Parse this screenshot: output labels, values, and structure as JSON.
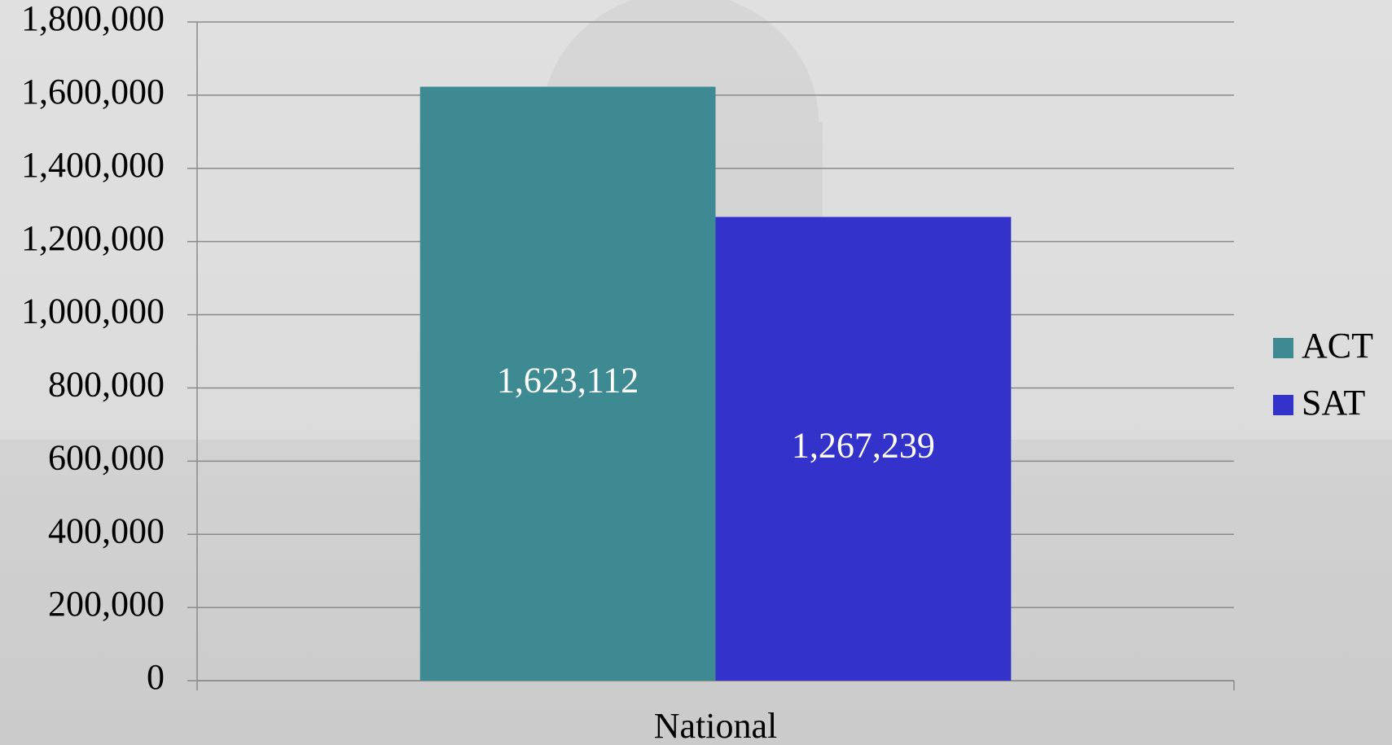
{
  "chart_data": {
    "type": "bar",
    "categories": [
      "National"
    ],
    "series": [
      {
        "name": "ACT",
        "color": "#3d8a92",
        "values": [
          1623112
        ],
        "value_labels": [
          "1,623,112"
        ]
      },
      {
        "name": "SAT",
        "color": "#3333cc",
        "values": [
          1267239
        ],
        "value_labels": [
          "1,267,239"
        ]
      }
    ],
    "ylim": [
      0,
      1800000
    ],
    "yticks": [
      0,
      {
        "value": 200000,
        "label": "200,000"
      },
      {
        "value": 400000,
        "label": "400,000"
      },
      {
        "value": 600000,
        "label": "600,000"
      },
      {
        "value": 800000,
        "label": "800,000"
      },
      {
        "value": 1000000,
        "label": "1,000,000"
      },
      {
        "value": 1200000,
        "label": "1,200,000"
      },
      {
        "value": 1400000,
        "label": "1,400,000"
      },
      {
        "value": 1600000,
        "label": "1,600,000"
      },
      {
        "value": 1800000,
        "label": "1,800,000"
      }
    ],
    "grid": true,
    "legend": "right"
  }
}
